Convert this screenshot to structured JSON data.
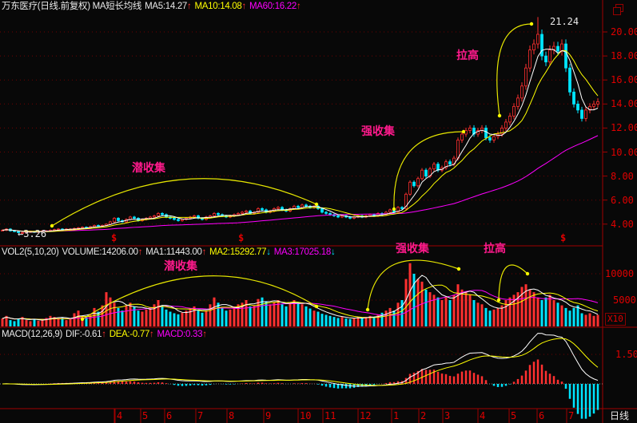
{
  "header": {
    "title": "万东医疗(日线.前复权) MA短长均线",
    "ma5": "MA5:14.27",
    "ma10": "MA10:14.08",
    "ma60": "MA60:16.22",
    "arrow_up": "↑",
    "arrow_down": "↓"
  },
  "volume_header": {
    "title": "VOL2(5,10,20)",
    "volume": "VOLUME:14206.00",
    "ma1": "MA1:11443.00",
    "ma2": "MA2:15292.77",
    "ma3": "MA3:17025.18"
  },
  "macd_header": {
    "title": "MACD(12,26,9)",
    "dif": "DIF:-0.61",
    "dea": "DEA:-0.77",
    "macd": "MACD:0.33"
  },
  "annotations": {
    "main": [
      "潜收集",
      "强收集",
      "拉高"
    ],
    "volume": [
      "潜收集",
      "强收集",
      "拉高"
    ],
    "high_label": "21.24",
    "low_label": "←3.26",
    "marker": "$"
  },
  "axes": {
    "price_ticks": [
      "20.00",
      "18.00",
      "16.00",
      "14.00",
      "12.00",
      "10.00",
      "8.00",
      "6.00",
      "4.00"
    ],
    "volume_ticks": [
      "10000",
      "5000"
    ],
    "volume_unit": "X10",
    "macd_ticks": [
      "1.50"
    ],
    "time_ticks": [
      "4",
      "5",
      "6",
      "7",
      "8",
      "9",
      "10",
      "11",
      "12",
      "1",
      "2",
      "3",
      "4",
      "5",
      "6",
      "7"
    ],
    "period": "日线"
  },
  "colors": {
    "up": "#ff3030",
    "down": "#00e5ff",
    "ma5": "#ffffff",
    "ma10": "#ffff00",
    "ma60": "#ff00ff",
    "annotation": "#ff1a8c",
    "axis": "#c00000"
  },
  "chart_data": {
    "type": "candlestick",
    "price_range": [
      3.0,
      22.0
    ],
    "close": [
      3.5,
      3.6,
      3.45,
      3.4,
      3.3,
      3.3,
      3.35,
      3.4,
      3.35,
      3.4,
      3.45,
      3.45,
      3.5,
      3.55,
      3.6,
      3.55,
      3.6,
      3.6,
      3.65,
      3.7,
      3.75,
      3.7,
      3.8,
      3.9,
      3.85,
      3.9,
      4.0,
      4.2,
      4.5,
      4.3,
      4.2,
      4.4,
      4.6,
      4.5,
      4.3,
      4.4,
      4.5,
      4.6,
      4.7,
      4.9,
      4.8,
      4.6,
      4.5,
      4.4,
      4.3,
      4.4,
      4.5,
      4.6,
      4.7,
      4.5,
      4.4,
      4.6,
      4.7,
      4.9,
      4.8,
      4.7,
      4.6,
      4.7,
      4.8,
      4.9,
      5.0,
      5.1,
      4.9,
      5.0,
      5.3,
      5.2,
      5.0,
      5.1,
      5.3,
      5.4,
      5.2,
      5.1,
      5.3,
      5.5,
      5.4,
      5.6,
      5.5,
      5.4,
      5.5,
      5.3,
      5.0,
      4.9,
      4.8,
      4.7,
      4.6,
      4.7,
      4.6,
      4.5,
      4.6,
      4.7,
      4.6,
      4.7,
      4.8,
      4.7,
      4.9,
      4.8,
      5.0,
      5.2,
      5.0,
      5.4,
      5.3,
      6.5,
      7.5,
      7.2,
      7.8,
      8.5,
      8.0,
      8.6,
      9.0,
      8.5,
      8.7,
      9.2,
      9.0,
      9.5,
      11.0,
      11.5,
      11.8,
      12.0,
      11.5,
      11.8,
      12.0,
      11.2,
      11.0,
      11.3,
      11.5,
      12.0,
      12.5,
      13.0,
      13.8,
      14.5,
      15.5,
      17.0,
      18.5,
      19.0,
      19.8,
      18.0,
      17.5,
      18.5,
      18.8,
      18.4,
      19.0,
      17.0,
      15.0,
      14.0,
      13.5,
      12.8,
      13.5,
      13.8,
      14.0,
      14.2
    ],
    "volume": [
      1500,
      2000,
      1200,
      1000,
      1500,
      1800,
      1200,
      1000,
      1300,
      1100,
      1400,
      1600,
      2000,
      1800,
      1500,
      1700,
      1200,
      1400,
      2500,
      3000,
      2000,
      1800,
      2200,
      3500,
      2800,
      4000,
      6500,
      5500,
      4500,
      3500,
      3000,
      4000,
      4500,
      3800,
      3000,
      2800,
      3200,
      3600,
      4200,
      5000,
      4000,
      3200,
      2800,
      2500,
      2300,
      2600,
      3000,
      3400,
      3800,
      3000,
      2600,
      3000,
      4200,
      5500,
      4500,
      3500,
      3000,
      3200,
      3800,
      4200,
      4500,
      5000,
      3800,
      4000,
      5200,
      5500,
      4800,
      4200,
      4600,
      5000,
      4200,
      3800,
      4400,
      5000,
      4600,
      4200,
      3800,
      3400,
      3000,
      2800,
      2400,
      2200,
      2000,
      1800,
      1600,
      1800,
      1500,
      1400,
      1600,
      1800,
      1600,
      1800,
      2000,
      1800,
      2200,
      2600,
      3000,
      3500,
      3000,
      4500,
      5000,
      9000,
      12000,
      10000,
      9000,
      8500,
      7000,
      6500,
      6000,
      5500,
      5000,
      5500,
      5000,
      6000,
      8000,
      7000,
      6500,
      6000,
      5000,
      4500,
      4200,
      3500,
      3000,
      3200,
      3500,
      4000,
      5000,
      5500,
      6000,
      6500,
      7500,
      8000,
      7000,
      6500,
      5500,
      5000,
      5500,
      6000,
      5000,
      4500,
      4000,
      3500,
      3000,
      3500,
      4000,
      2500,
      2200,
      2500,
      2000,
      2200
    ],
    "high": 21.24,
    "low": 3.26,
    "volume_range": [
      0,
      12500
    ],
    "macd_range": [
      -1.6,
      2.2
    ]
  }
}
